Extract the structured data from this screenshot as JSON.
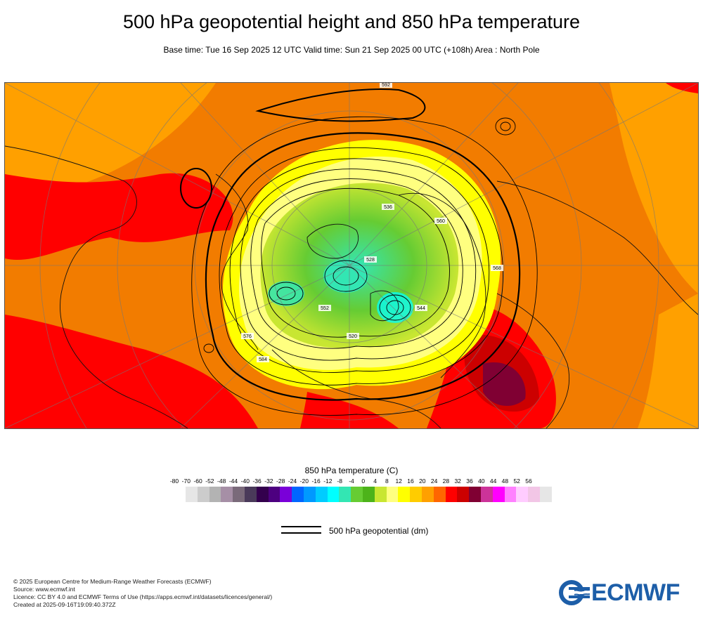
{
  "header": {
    "title": "500 hPa geopotential height and 850 hPa temperature",
    "subtitle": "Base time: Tue 16 Sep 2025 12 UTC Valid time: Sun 21 Sep 2025 00 UTC (+108h) Area : North Pole"
  },
  "map": {
    "projection": "north-polar-stereographic",
    "background_color": "#f27c00",
    "contour_labels": [
      "520",
      "528",
      "536",
      "544",
      "552",
      "560",
      "568",
      "576",
      "584",
      "592"
    ]
  },
  "temperature_legend": {
    "title": "850 hPa temperature (C)",
    "ticks": [
      "-80",
      "-70",
      "-60",
      "-52",
      "-48",
      "-44",
      "-40",
      "-36",
      "-32",
      "-28",
      "-24",
      "-20",
      "-16",
      "-12",
      "-8",
      "-4",
      "0",
      "4",
      "8",
      "12",
      "16",
      "20",
      "24",
      "28",
      "32",
      "36",
      "40",
      "44",
      "48",
      "52",
      "56"
    ],
    "colors": [
      "#e6e6e6",
      "#cccccc",
      "#b3b3b3",
      "#a68fa6",
      "#7a6a7a",
      "#4a3a5a",
      "#33004d",
      "#4d0080",
      "#7a00d9",
      "#0066ff",
      "#0099ff",
      "#00ccff",
      "#00ffff",
      "#33e6b3",
      "#66cc33",
      "#4db31a",
      "#c8e632",
      "#ffff80",
      "#ffff00",
      "#ffcc00",
      "#ffa000",
      "#ff6600",
      "#ff0000",
      "#cc0000",
      "#800033",
      "#cc3399",
      "#ff00ff",
      "#ff80ff",
      "#ffccff",
      "#f2c6e6",
      "#e6e6e6"
    ]
  },
  "contour_legend": {
    "label": "500 hPa geopotential (dm)"
  },
  "footer": {
    "lines": [
      "© 2025 European Centre for Medium-Range Weather Forecasts (ECMWF)",
      "Source: www.ecmwf.int",
      "Licence: CC BY 4.0 and ECMWF Terms of Use (https://apps.ecmwf.int/datasets/licences/general/)",
      "Created at 2025-09-16T19:09:40.372Z"
    ]
  },
  "logo": {
    "text": "ECMWF",
    "color": "#1d5ea8"
  }
}
